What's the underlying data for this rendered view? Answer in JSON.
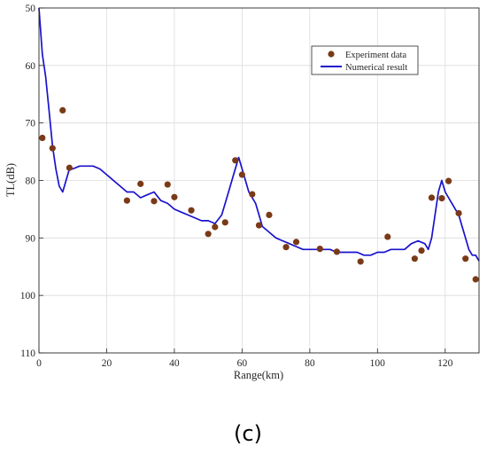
{
  "caption": "(c)",
  "chart_data": {
    "type": "line",
    "title": "",
    "xlabel": "Range(km)",
    "ylabel": "TL(dB)",
    "xlim": [
      0,
      130
    ],
    "ylim": [
      50,
      110
    ],
    "y_reversed": true,
    "grid": true,
    "legend_position": "top-right",
    "x_ticks": [
      0,
      20,
      40,
      60,
      80,
      100,
      120
    ],
    "y_ticks": [
      50,
      60,
      70,
      80,
      90,
      100,
      110
    ],
    "series": [
      {
        "name": "Experiment data",
        "kind": "scatter",
        "color": "#7a3a17",
        "x": [
          1,
          4,
          7,
          9,
          26,
          30,
          34,
          38,
          40,
          45,
          50,
          52,
          55,
          58,
          60,
          63,
          65,
          68,
          73,
          76,
          83,
          88,
          95,
          103,
          111,
          113,
          116,
          119,
          121,
          124,
          126,
          129
        ],
        "y": [
          72.6,
          74.4,
          67.8,
          77.8,
          83.5,
          80.6,
          83.6,
          80.7,
          82.9,
          85.2,
          89.3,
          88.1,
          87.3,
          76.5,
          79.0,
          82.4,
          87.8,
          86.0,
          91.6,
          90.7,
          91.9,
          92.4,
          94.1,
          89.8,
          93.6,
          92.2,
          83.0,
          83.1,
          80.1,
          85.7,
          93.6,
          97.2
        ]
      },
      {
        "name": "Numerical result",
        "kind": "line",
        "color": "#1a12cc",
        "x": [
          0,
          1,
          2,
          3,
          4,
          5,
          6,
          7,
          8,
          9,
          10,
          12,
          14,
          16,
          18,
          20,
          22,
          24,
          26,
          28,
          30,
          32,
          34,
          36,
          38,
          40,
          42,
          44,
          46,
          48,
          50,
          52,
          54,
          55,
          56,
          57,
          58,
          59,
          60,
          61,
          62,
          63,
          64,
          65,
          66,
          68,
          70,
          72,
          74,
          76,
          78,
          80,
          82,
          84,
          86,
          88,
          90,
          92,
          94,
          96,
          98,
          100,
          102,
          104,
          106,
          108,
          110,
          112,
          114,
          115,
          116,
          117,
          118,
          119,
          120,
          121,
          122,
          123,
          124,
          125,
          126,
          127,
          128,
          129,
          130
        ],
        "y": [
          50,
          58,
          62,
          68,
          74,
          78,
          81,
          82,
          80,
          78,
          78,
          77.5,
          77.5,
          77.5,
          78,
          79,
          80,
          81,
          82,
          82,
          83,
          82.5,
          82,
          83.5,
          84,
          85,
          85.5,
          86,
          86.5,
          87,
          87,
          87.5,
          86,
          84,
          82,
          80,
          78,
          76,
          78,
          80,
          82,
          83,
          84,
          86,
          88,
          89,
          90,
          90.5,
          91,
          91.5,
          92,
          92,
          92,
          92,
          92,
          92.5,
          92.5,
          92.5,
          92.5,
          93,
          93,
          92.5,
          92.5,
          92,
          92,
          92,
          91,
          90.5,
          91,
          92,
          90,
          86,
          82,
          80,
          82,
          83,
          84,
          85,
          86,
          88,
          90,
          92,
          93,
          93,
          94
        ]
      }
    ]
  }
}
